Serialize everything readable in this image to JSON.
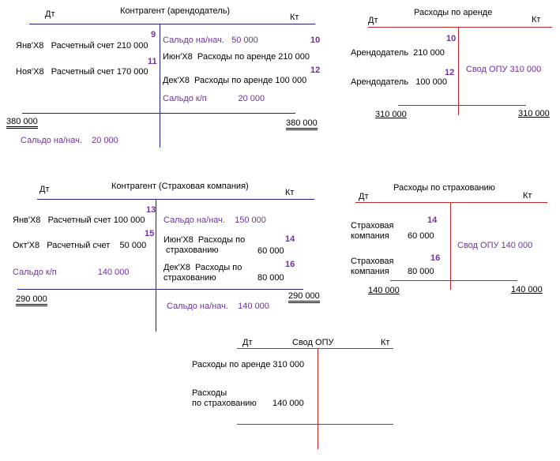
{
  "t1": {
    "dt": "Дт",
    "kt": "Кт",
    "title": "Контрагент (арендодатель)",
    "e1_num": "9",
    "e1": "Янв'Х8   Расчетный счет 210 000",
    "e2_num": "11",
    "e2": "Ноя'Х8   Расчетный счет 170 000",
    "open_credit": "Сальдо на/нач.   50 000",
    "open_credit_num": "10",
    "c1": "Июн'Х8  Расходы по аренде 210 000",
    "c2_num": "12",
    "c2": "Дек'Х8  Расходы по аренде 100 000",
    "close": "Сальдо к/п             20 000",
    "debit_total": "380 000",
    "credit_total": "380 000",
    "open_next": "Сальдо на/нач.    20 000"
  },
  "t2": {
    "title": "Расходы по аренде",
    "dt": "Дт",
    "kt": "Кт",
    "e1_num": "10",
    "e1": "Арендодатель  210 000",
    "e2_num": "12",
    "e2": "Арендодатель   100 000",
    "credit": "Свод ОПУ 310 000",
    "debit_total": "310 000",
    "credit_total": "310 000"
  },
  "t3": {
    "dt": "Дт",
    "kt": "Кт",
    "title": "Контрагент (Страховая компания)",
    "e1_num": "13",
    "e1": "Янв'Х8   Расчетный счет 100 000",
    "e2_num": "15",
    "e2": "Окт'Х8   Расчетный счет    50 000",
    "close": "Сальдо к/п                 140 000",
    "open_credit": "Сальдо на/нач.    150 000",
    "c1_num": "14",
    "c1a": "Июн'Х8  Расходы по",
    "c1b": " страхованию",
    "c1_amt": "60 000",
    "c2_num": "16",
    "c2a": "Дек'Х8  Расходы по",
    "c2b": "страхованию",
    "c2_amt": "80 000",
    "debit_total": "290 000",
    "credit_total": "290 000",
    "open_next": "Сальдо на/нач.    140 000"
  },
  "t4": {
    "title": "Расходы по страхованию",
    "dt": "Дт",
    "kt": "Кт",
    "e1_num": "14",
    "e1a": "Страховая",
    "e1b": "компания",
    "e1_amt": "60 000",
    "e2_num": "16",
    "e2a": "Страховая",
    "e2b": "компания",
    "e2_amt": "80 000",
    "credit": "Свод ОПУ 140 000",
    "debit_total": "140 000",
    "credit_total": "140 000"
  },
  "t5": {
    "dt": "Дт",
    "title": "Свод ОПУ",
    "kt": "Кт",
    "e1": "Расходы по аренде 310 000",
    "e2a": "Расходы",
    "e2b": "по страхованию",
    "e2_amt": "140 000"
  }
}
